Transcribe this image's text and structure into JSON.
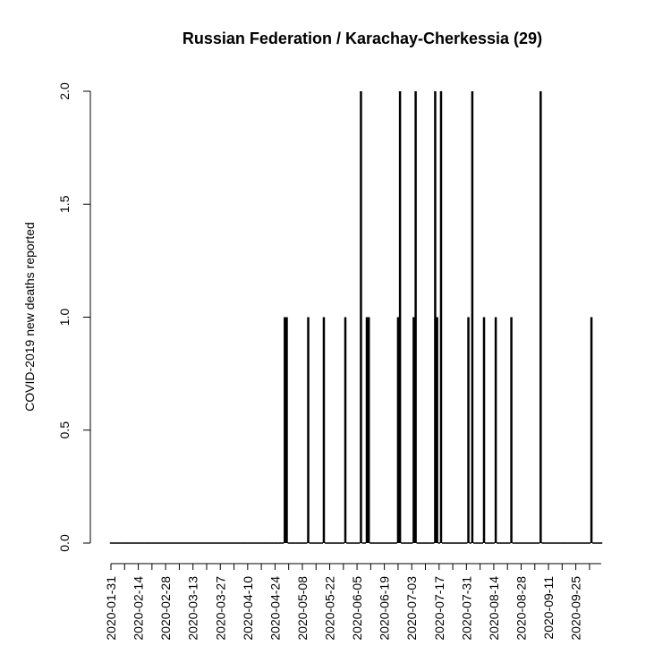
{
  "chart_data": {
    "type": "bar",
    "title": "Russian Federation / Karachay-Cherkessia (29)",
    "xlabel": "",
    "ylabel": "COVID-2019 new deaths reported",
    "x_start": "2020-01-31",
    "x_end": "2020-10-08",
    "ylim": [
      0,
      2
    ],
    "yticks": [
      "0.0",
      "0.5",
      "1.0",
      "1.5",
      "2.0"
    ],
    "xticks": [
      "2020-01-31",
      "2020-02-14",
      "2020-02-28",
      "2020-03-13",
      "2020-03-27",
      "2020-04-10",
      "2020-04-24",
      "2020-05-08",
      "2020-05-22",
      "2020-06-05",
      "2020-06-19",
      "2020-07-03",
      "2020-07-17",
      "2020-07-31",
      "2020-08-14",
      "2020-08-28",
      "2020-09-11",
      "2020-09-25"
    ],
    "grid": false,
    "nonzero": [
      {
        "date": "2020-04-29",
        "value": 1
      },
      {
        "date": "2020-04-30",
        "value": 1
      },
      {
        "date": "2020-05-11",
        "value": 1
      },
      {
        "date": "2020-05-19",
        "value": 1
      },
      {
        "date": "2020-05-30",
        "value": 1
      },
      {
        "date": "2020-06-07",
        "value": 2
      },
      {
        "date": "2020-06-10",
        "value": 1
      },
      {
        "date": "2020-06-11",
        "value": 1
      },
      {
        "date": "2020-06-26",
        "value": 1
      },
      {
        "date": "2020-06-27",
        "value": 2
      },
      {
        "date": "2020-07-04",
        "value": 1
      },
      {
        "date": "2020-07-05",
        "value": 2
      },
      {
        "date": "2020-07-15",
        "value": 2
      },
      {
        "date": "2020-07-16",
        "value": 1
      },
      {
        "date": "2020-07-18",
        "value": 2
      },
      {
        "date": "2020-08-01",
        "value": 1
      },
      {
        "date": "2020-08-03",
        "value": 2
      },
      {
        "date": "2020-08-09",
        "value": 1
      },
      {
        "date": "2020-08-15",
        "value": 1
      },
      {
        "date": "2020-08-23",
        "value": 1
      },
      {
        "date": "2020-09-07",
        "value": 2
      },
      {
        "date": "2020-10-03",
        "value": 1
      }
    ],
    "default_value": 0
  }
}
